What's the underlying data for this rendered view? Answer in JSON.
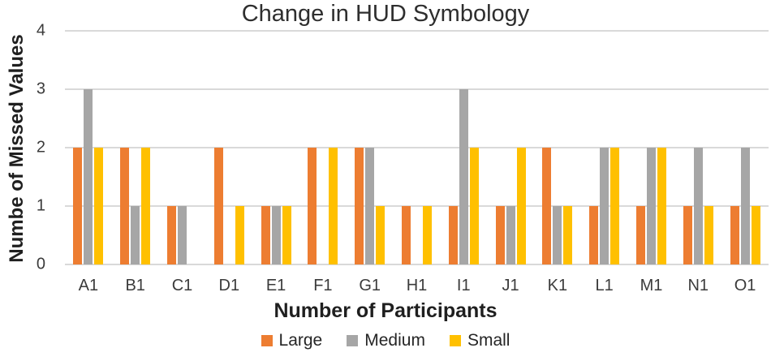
{
  "title": "Change in HUD Symbology",
  "y_axis": {
    "label": "Numbe of Missed Values"
  },
  "x_axis": {
    "label": "Number of Participants"
  },
  "colors": {
    "large": "#ED7D31",
    "medium": "#A6A6A6",
    "small": "#FFC000",
    "gridline": "#D9D9D9"
  },
  "legend": {
    "items": [
      "Large",
      "Medium",
      "Small"
    ]
  },
  "chart_data": {
    "type": "bar",
    "title": "Change in HUD Symbology",
    "xlabel": "Number of Participants",
    "ylabel": "Numbe of Missed Values",
    "ylim": [
      0,
      4
    ],
    "yticks": [
      0,
      1,
      2,
      3,
      4
    ],
    "grid": true,
    "legend_position": "bottom",
    "categories": [
      "A1",
      "B1",
      "C1",
      "D1",
      "E1",
      "F1",
      "G1",
      "H1",
      "I1",
      "J1",
      "K1",
      "L1",
      "M1",
      "N1",
      "O1"
    ],
    "series": [
      {
        "name": "Large",
        "color": "#ED7D31",
        "values": [
          2,
          2,
          1,
          2,
          1,
          2,
          2,
          1,
          1,
          1,
          2,
          1,
          1,
          1,
          1
        ]
      },
      {
        "name": "Medium",
        "color": "#A6A6A6",
        "values": [
          3,
          1,
          1,
          0,
          1,
          0,
          2,
          0,
          3,
          1,
          1,
          2,
          2,
          2,
          2
        ]
      },
      {
        "name": "Small",
        "color": "#FFC000",
        "values": [
          2,
          2,
          0,
          1,
          1,
          2,
          1,
          1,
          2,
          2,
          1,
          2,
          2,
          1,
          1
        ]
      }
    ]
  }
}
